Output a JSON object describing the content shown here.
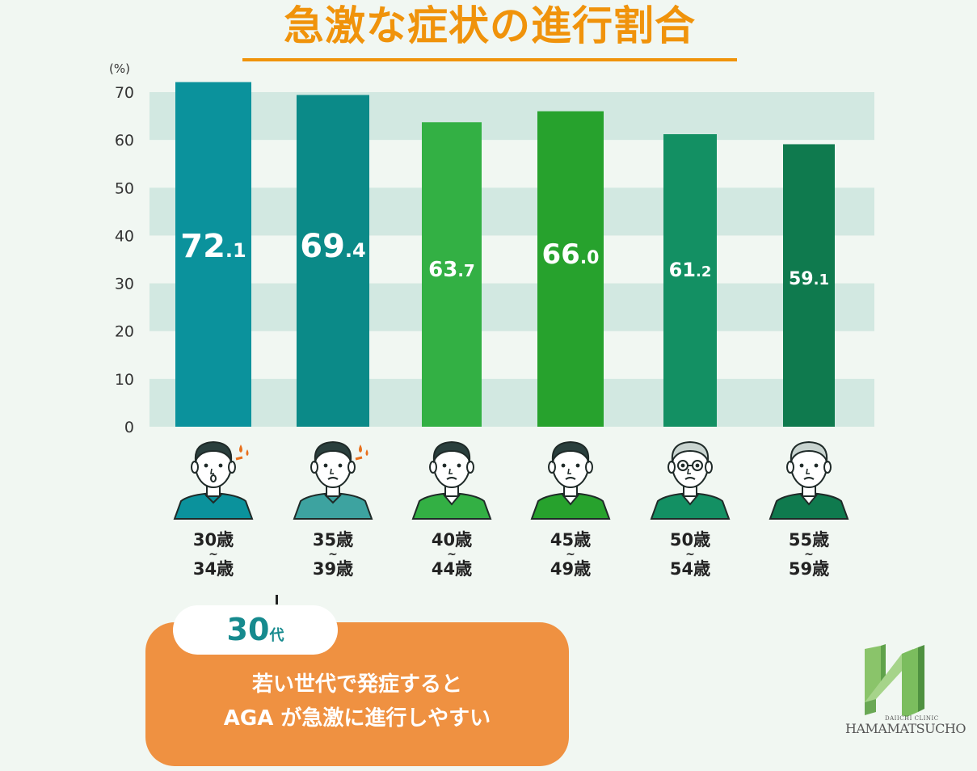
{
  "title": "急激な症状の進行割合",
  "unit": "(%)",
  "chart_data": {
    "type": "bar",
    "title": "急激な症状の進行割合",
    "ylabel": "(%)",
    "ylim": [
      0,
      70
    ],
    "yticks": [
      0,
      10,
      20,
      30,
      40,
      50,
      60,
      70
    ],
    "categories": [
      "30歳〜34歳",
      "35歳〜39歳",
      "40歳〜44歳",
      "45歳〜49歳",
      "50歳〜54歳",
      "55歳〜59歳"
    ],
    "values": [
      72.1,
      69.4,
      63.7,
      66.0,
      61.2,
      59.1
    ],
    "value_labels": [
      {
        "int": "72",
        "dec": ".1"
      },
      {
        "int": "69",
        "dec": ".4"
      },
      {
        "int": "63",
        "dec": ".7"
      },
      {
        "int": "66",
        "dec": ".0"
      },
      {
        "int": "61",
        "dec": ".2"
      },
      {
        "int": "59",
        "dec": ".1"
      }
    ],
    "colors": [
      "#0b929c",
      "#0b8a88",
      "#33b044",
      "#27a22d",
      "#139063",
      "#0f7a4e"
    ],
    "grid": "horizontal bands",
    "band_color": "#d2e8e1"
  },
  "age_labels": [
    {
      "top": "30歳",
      "tilde": "~",
      "bottom": "34歳"
    },
    {
      "top": "35歳",
      "tilde": "~",
      "bottom": "39歳"
    },
    {
      "top": "40歳",
      "tilde": "~",
      "bottom": "44歳"
    },
    {
      "top": "45歳",
      "tilde": "~",
      "bottom": "49歳"
    },
    {
      "top": "50歳",
      "tilde": "~",
      "bottom": "54歳"
    },
    {
      "top": "55歳",
      "tilde": "~",
      "bottom": "59歳"
    }
  ],
  "faces": [
    {
      "icon": "young-man-sweat-icon",
      "shirt": "#0b929c"
    },
    {
      "icon": "thinning-man-sweat-icon",
      "shirt": "#3da3a0"
    },
    {
      "icon": "middle-aged-man-icon",
      "shirt": "#33b044"
    },
    {
      "icon": "middle-aged-man-receding-icon",
      "shirt": "#27a22d"
    },
    {
      "icon": "older-man-glasses-icon",
      "shirt": "#139063"
    },
    {
      "icon": "elderly-man-icon",
      "shirt": "#0f7a4e"
    }
  ],
  "callout": {
    "tab_big": "30",
    "tab_small": "代",
    "line1": "若い世代で発症すると",
    "line2": "AGA が急激に進行しやすい",
    "color": "#ef9141"
  },
  "logo": {
    "line1": "DAIICHI CLINIC",
    "line2": "HAMAMATSUCHO",
    "icon": "clinic-h-logo-icon"
  }
}
